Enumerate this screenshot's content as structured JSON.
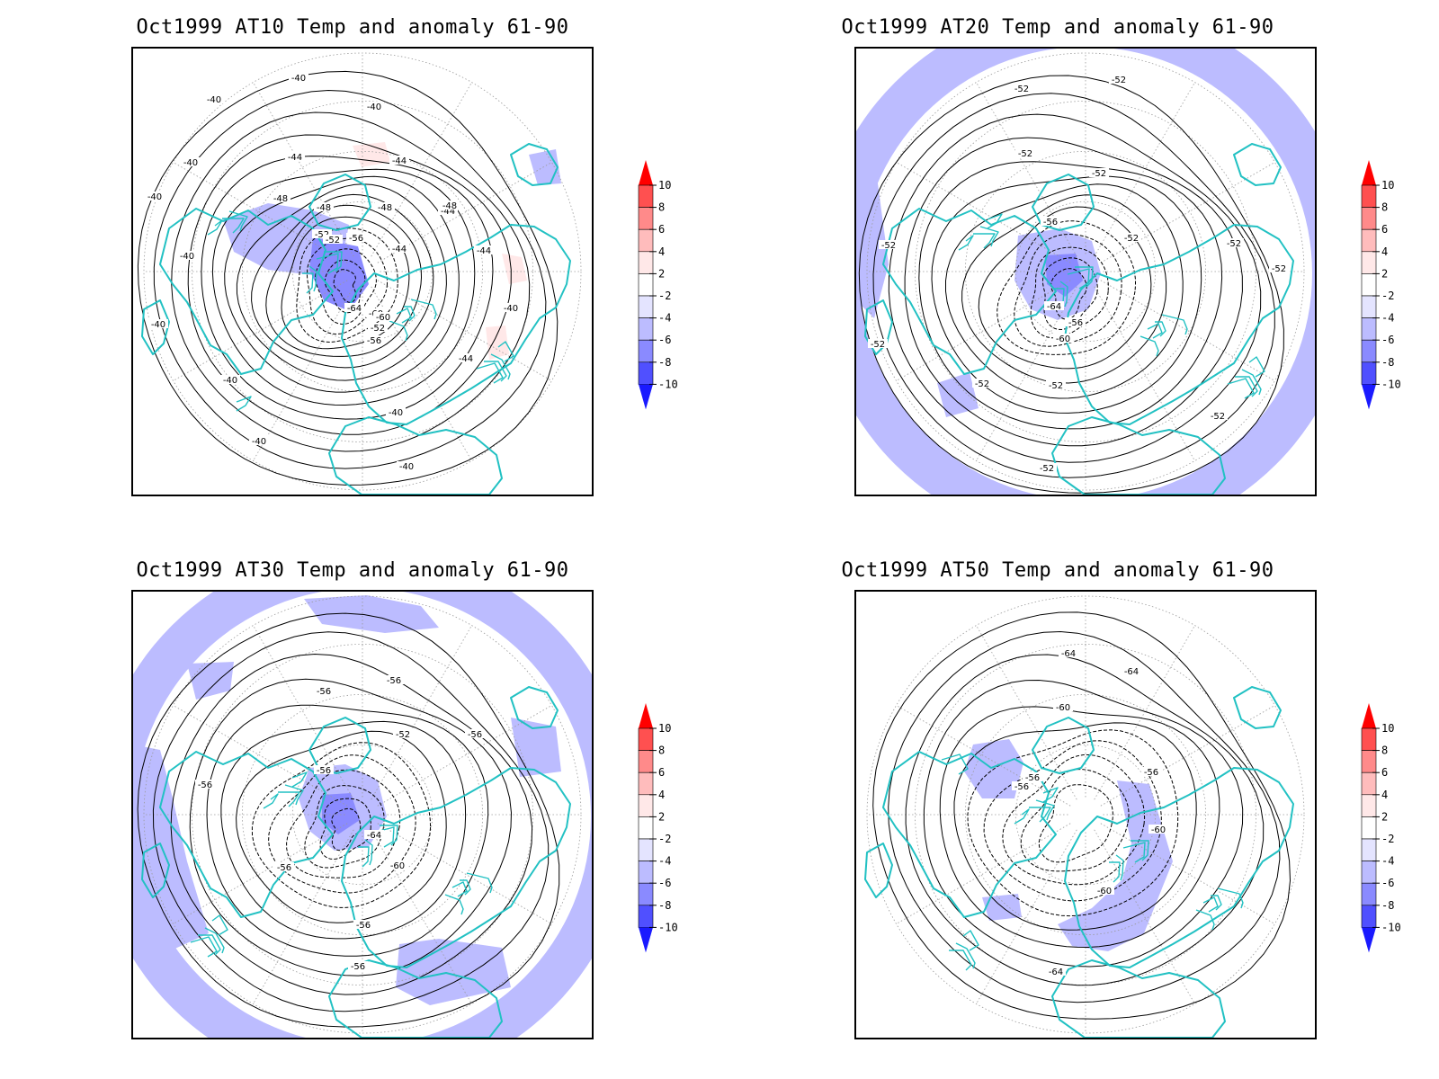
{
  "figure": {
    "panels": [
      {
        "title": "Oct1999 AT10 Temp and anomaly 61-90",
        "contour_labels": [
          "-40",
          "-40",
          "-40",
          "-40",
          "-40",
          "-40",
          "-40",
          "-40",
          "-40",
          "-40",
          "-40",
          "-40",
          "-44",
          "-44",
          "-44",
          "-44",
          "-44",
          "-44",
          "-48",
          "-48",
          "-48",
          "-48",
          "-52",
          "-52",
          "-52",
          "-56",
          "-60",
          "-60",
          "-64",
          "-56"
        ]
      },
      {
        "title": "Oct1999 AT20 Temp and anomaly 61-90",
        "contour_labels": [
          "-52",
          "-52",
          "-52",
          "-52",
          "-52",
          "-52",
          "-52",
          "-52",
          "-52",
          "-52",
          "-52",
          "-52",
          "-52",
          "-56",
          "-56",
          "-60",
          "-64"
        ]
      },
      {
        "title": "Oct1999 AT30 Temp and anomaly 61-90",
        "contour_labels": [
          "-56",
          "-56",
          "-56",
          "-56",
          "-56",
          "-56",
          "-56",
          "-56",
          "-52",
          "-60",
          "-64"
        ]
      },
      {
        "title": "Oct1999 AT50 Temp and anomaly 61-90",
        "contour_labels": [
          "-64",
          "-64",
          "-60",
          "-56",
          "-56",
          "-56",
          "-60",
          "-60",
          "-64"
        ]
      }
    ],
    "colorbar": {
      "labels": [
        "10",
        "8",
        "6",
        "4",
        "2",
        "-2",
        "-4",
        "-6",
        "-8",
        "-10"
      ],
      "colors": [
        "#ff0000",
        "#ff5050",
        "#ff8a8a",
        "#ffbcbc",
        "#ffe8e8",
        "#ffffff",
        "#e4e4ff",
        "#bcbcff",
        "#8a8aff",
        "#5050ff",
        "#1a1aff"
      ]
    },
    "land_outline_color": "#22c1c3"
  }
}
